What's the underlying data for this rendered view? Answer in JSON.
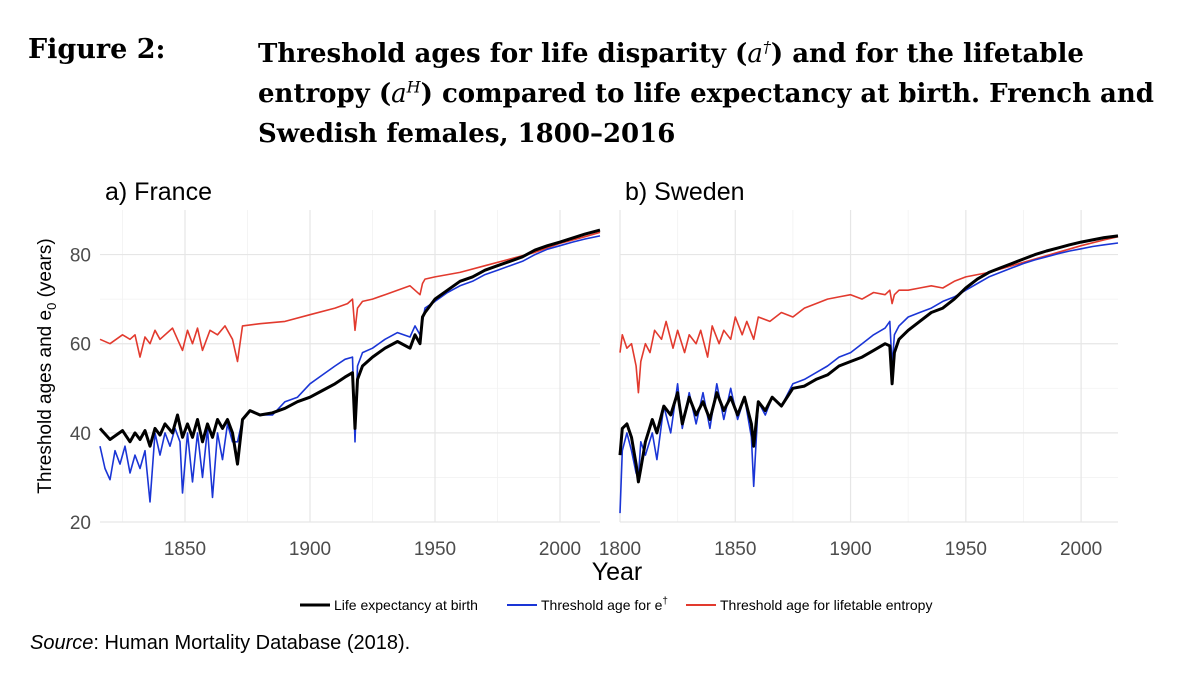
{
  "figure": {
    "label": "Figure 2:",
    "caption_part1": "Threshold ages for life disparity (",
    "caption_sym1": "a",
    "caption_sup1": "†",
    "caption_part2": ") and for the lifetable entropy (",
    "caption_sym2": "a",
    "caption_sup2": "H",
    "caption_part3": ") compared to life expectancy at birth. French and Swedish females, 1800–2016"
  },
  "source": {
    "label": "Source",
    "text": ": Human Mortality Database (2018)."
  },
  "colors": {
    "life_expectancy": "#000000",
    "threshold_edagger": "#1a35d6",
    "threshold_entropy": "#e23a2e",
    "grid": "#e6e6e6",
    "axis_text": "#4d4d4d"
  },
  "chart_data": {
    "type": "line",
    "ylabel_main": "Threshold ages and e",
    "ylabel_sub": "0",
    "ylabel_tail": " (years)",
    "xlabel": "Year",
    "ylim": [
      20,
      90
    ],
    "yticks": [
      20,
      40,
      60,
      80
    ],
    "legend": {
      "position": "bottom",
      "entries": [
        {
          "name": "Life expectancy at birth",
          "key": "life_expectancy"
        },
        {
          "name": "Threshold age for e",
          "sup": "†",
          "key": "threshold_edagger"
        },
        {
          "name": "Threshold age for lifetable entropy",
          "key": "threshold_entropy"
        }
      ]
    },
    "panels": [
      {
        "title": "a) France",
        "xlim": [
          1816,
          2016
        ],
        "xticks": [
          1850,
          1900,
          1950,
          2000
        ],
        "series": {
          "life_expectancy": {
            "x": [
              1816,
              1820,
              1825,
              1828,
              1830,
              1832,
              1834,
              1836,
              1838,
              1840,
              1842,
              1845,
              1847,
              1849,
              1851,
              1853,
              1855,
              1857,
              1859,
              1861,
              1863,
              1865,
              1867,
              1869,
              1871,
              1873,
              1876,
              1880,
              1885,
              1890,
              1895,
              1900,
              1905,
              1910,
              1914,
              1917,
              1918,
              1919,
              1921,
              1925,
              1930,
              1935,
              1940,
              1942,
              1944,
              1945,
              1946,
              1950,
              1955,
              1960,
              1965,
              1970,
              1975,
              1980,
              1985,
              1990,
              1995,
              2000,
              2005,
              2010,
              2016
            ],
            "y": [
              41,
              38.5,
              40.5,
              38,
              40,
              38.5,
              40.5,
              37,
              41,
              39.5,
              42,
              40,
              44,
              39,
              42,
              39,
              43,
              38,
              42,
              39,
              43,
              41,
              43,
              40,
              33,
              43,
              45,
              44,
              44.5,
              45.5,
              47,
              48,
              49.5,
              51,
              52.5,
              53.5,
              41,
              52,
              55,
              57,
              59,
              60.5,
              59,
              62,
              60,
              66,
              67,
              70,
              72,
              74,
              75,
              76.5,
              77.5,
              78.5,
              79.5,
              81,
              82,
              82.8,
              83.7,
              84.6,
              85.5
            ]
          },
          "threshold_edagger": {
            "x": [
              1816,
              1818,
              1820,
              1822,
              1824,
              1826,
              1828,
              1830,
              1832,
              1834,
              1836,
              1838,
              1840,
              1842,
              1844,
              1846,
              1848,
              1849,
              1851,
              1853,
              1855,
              1857,
              1859,
              1861,
              1863,
              1865,
              1867,
              1869,
              1871,
              1873,
              1876,
              1880,
              1885,
              1890,
              1895,
              1900,
              1905,
              1910,
              1914,
              1917,
              1918,
              1919,
              1921,
              1925,
              1930,
              1935,
              1940,
              1942,
              1944,
              1946,
              1950,
              1955,
              1960,
              1965,
              1970,
              1975,
              1980,
              1985,
              1990,
              1995,
              2000,
              2005,
              2010,
              2016
            ],
            "y": [
              37,
              32,
              29.5,
              36,
              33,
              37,
              31,
              35,
              32,
              36,
              24.5,
              40,
              35,
              40,
              37,
              41,
              38,
              26.5,
              40,
              29,
              40,
              30,
              41,
              25.5,
              40,
              34,
              42,
              38,
              38,
              43,
              45,
              44,
              44,
              47,
              48,
              51,
              53,
              55,
              56.5,
              57,
              38,
              55,
              58,
              59,
              61,
              62.5,
              61.5,
              64,
              62,
              68,
              69.5,
              71.5,
              73,
              74,
              75.5,
              76.5,
              77.5,
              78.5,
              80,
              81.2,
              82,
              82.8,
              83.5,
              84.2
            ]
          },
          "threshold_entropy": {
            "x": [
              1816,
              1820,
              1825,
              1828,
              1830,
              1832,
              1834,
              1836,
              1838,
              1840,
              1845,
              1847,
              1849,
              1851,
              1853,
              1855,
              1857,
              1860,
              1863,
              1866,
              1869,
              1871,
              1873,
              1880,
              1890,
              1900,
              1910,
              1915,
              1917,
              1918,
              1919,
              1921,
              1925,
              1930,
              1935,
              1940,
              1944,
              1945,
              1946,
              1950,
              1960,
              1970,
              1980,
              1990,
              2000,
              2010,
              2016
            ],
            "y": [
              61,
              60,
              62,
              61,
              62,
              57,
              61.5,
              60,
              63,
              61,
              63.5,
              61,
              58.5,
              63,
              60,
              63.5,
              58.5,
              63,
              62,
              64,
              61,
              56,
              64,
              64.5,
              65,
              66.5,
              68,
              69,
              70,
              63,
              68,
              69.5,
              70,
              71,
              72,
              73,
              71,
              73.5,
              74.5,
              75,
              76,
              77.5,
              79,
              80.5,
              82.5,
              84,
              85
            ]
          }
        }
      },
      {
        "title": "b) Sweden",
        "xlim": [
          1800,
          2016
        ],
        "xticks": [
          1800,
          1850,
          1900,
          1950,
          2000
        ],
        "series": {
          "life_expectancy": {
            "x": [
              1800,
              1801,
              1803,
              1805,
              1807,
              1808,
              1809,
              1811,
              1814,
              1816,
              1819,
              1822,
              1825,
              1827,
              1830,
              1833,
              1836,
              1839,
              1842,
              1845,
              1848,
              1851,
              1854,
              1857,
              1858,
              1860,
              1863,
              1866,
              1870,
              1875,
              1880,
              1885,
              1890,
              1895,
              1900,
              1905,
              1910,
              1915,
              1917,
              1918,
              1919,
              1921,
              1925,
              1930,
              1935,
              1940,
              1945,
              1950,
              1955,
              1960,
              1965,
              1970,
              1975,
              1980,
              1985,
              1990,
              1995,
              2000,
              2005,
              2010,
              2016
            ],
            "y": [
              35,
              41,
              42,
              39,
              33,
              29,
              32,
              38,
              43,
              40,
              46,
              44,
              49,
              42,
              48,
              44,
              47,
              43,
              49,
              45,
              48,
              44,
              48,
              42,
              37,
              47,
              45,
              48,
              46,
              50,
              50.5,
              52,
              53,
              55,
              56,
              57,
              58.5,
              60,
              59.5,
              51,
              58,
              61,
              63,
              65,
              67,
              68,
              70,
              72.5,
              74.5,
              76,
              77,
              78,
              79,
              80,
              80.8,
              81.5,
              82.2,
              82.8,
              83.3,
              83.8,
              84.2
            ]
          },
          "threshold_edagger": {
            "x": [
              1800,
              1801,
              1803,
              1805,
              1807,
              1808,
              1809,
              1811,
              1814,
              1816,
              1819,
              1822,
              1825,
              1827,
              1830,
              1833,
              1836,
              1839,
              1842,
              1845,
              1848,
              1851,
              1854,
              1857,
              1858,
              1860,
              1863,
              1866,
              1870,
              1875,
              1880,
              1885,
              1890,
              1895,
              1900,
              1905,
              1910,
              1915,
              1917,
              1918,
              1919,
              1921,
              1925,
              1930,
              1935,
              1940,
              1945,
              1950,
              1955,
              1960,
              1965,
              1970,
              1975,
              1980,
              1985,
              1990,
              1995,
              2000,
              2005,
              2010,
              2016
            ],
            "y": [
              22,
              36,
              40,
              36,
              31,
              30,
              38,
              35,
              40,
              34,
              46,
              40,
              51,
              41,
              49,
              42,
              49,
              41,
              51,
              43,
              50,
              43,
              48,
              39,
              28,
              47,
              44,
              48,
              46,
              51,
              52,
              53.5,
              55,
              57,
              58,
              60,
              62,
              63.5,
              65,
              55,
              62,
              64,
              66,
              67,
              68,
              69.5,
              70.5,
              72,
              73.5,
              75,
              76,
              77,
              78,
              78.8,
              79.5,
              80.2,
              80.8,
              81.3,
              81.8,
              82.2,
              82.6
            ]
          },
          "threshold_entropy": {
            "x": [
              1800,
              1801,
              1803,
              1805,
              1807,
              1808,
              1809,
              1811,
              1813,
              1815,
              1818,
              1820,
              1823,
              1825,
              1828,
              1830,
              1833,
              1835,
              1838,
              1840,
              1843,
              1845,
              1848,
              1850,
              1853,
              1855,
              1858,
              1860,
              1865,
              1870,
              1875,
              1880,
              1885,
              1890,
              1895,
              1900,
              1905,
              1910,
              1915,
              1917,
              1918,
              1919,
              1921,
              1925,
              1930,
              1935,
              1940,
              1945,
              1950,
              1960,
              1970,
              1980,
              1990,
              2000,
              2010,
              2016
            ],
            "y": [
              58,
              62,
              59,
              60,
              55,
              49,
              56,
              60,
              58,
              63,
              61,
              65,
              59,
              63,
              58,
              62,
              60,
              63,
              57,
              64,
              60,
              63,
              61,
              66,
              62,
              65,
              61,
              66,
              65,
              67,
              66,
              68,
              69,
              70,
              70.5,
              71,
              70,
              71.5,
              71,
              72,
              69,
              71,
              72,
              72,
              72.5,
              73,
              72.5,
              74,
              75,
              76,
              77.5,
              79,
              80.5,
              82,
              83.3,
              84
            ]
          }
        }
      }
    ]
  }
}
